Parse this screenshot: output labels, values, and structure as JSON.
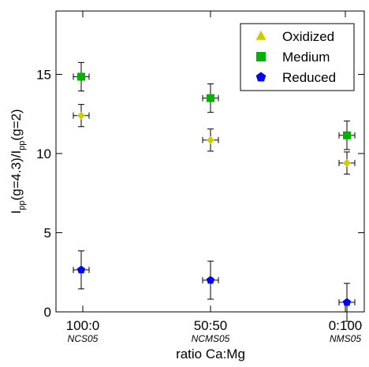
{
  "chart_data": {
    "type": "scatter",
    "categories": [
      "100:0",
      "50:50",
      "0:100"
    ],
    "category_sublabels": [
      "NCS05",
      "NCMS05",
      "NMS05"
    ],
    "xlabel": "ratio Ca:Mg",
    "ylabel": {
      "parts": [
        "I",
        "pp",
        "(g=4.3)/I",
        "pp",
        "(g=2)"
      ]
    },
    "ylim": [
      0,
      19
    ],
    "yticks": [
      0,
      5,
      10,
      15
    ],
    "legend_position": "top-right",
    "series": [
      {
        "name": "Oxidized",
        "marker": "triangle",
        "color": "#cccc00",
        "values": [
          12.4,
          10.85,
          9.4
        ],
        "err_y": [
          0.7,
          0.7,
          0.7
        ]
      },
      {
        "name": "Medium",
        "marker": "square",
        "color": "#00b300",
        "values": [
          14.85,
          13.5,
          11.15
        ],
        "err_y": [
          0.9,
          0.9,
          0.9
        ]
      },
      {
        "name": "Reduced",
        "marker": "pentagon",
        "color": "#0000ff",
        "values": [
          2.65,
          2.0,
          0.6
        ],
        "err_y": [
          1.2,
          1.2,
          1.2
        ]
      }
    ]
  }
}
